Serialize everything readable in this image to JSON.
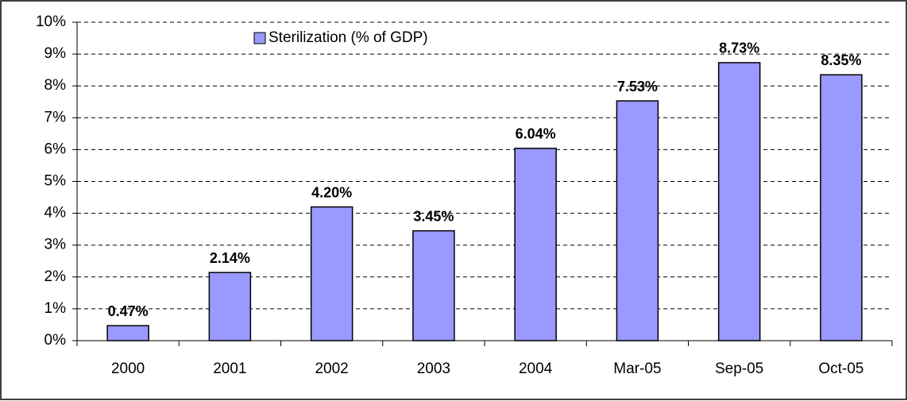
{
  "chart_data": {
    "type": "bar",
    "categories": [
      "2000",
      "2001",
      "2002",
      "2003",
      "2004",
      "Mar-05",
      "Sep-05",
      "Oct-05"
    ],
    "series": [
      {
        "name": "Sterilization (% of GDP)",
        "color": "#9999ff",
        "values": [
          0.47,
          2.14,
          4.2,
          3.45,
          6.04,
          7.53,
          8.73,
          8.35
        ],
        "value_labels": [
          "0.47%",
          "2.14%",
          "4.20%",
          "3.45%",
          "6.04%",
          "7.53%",
          "8.73%",
          "8.35%"
        ]
      }
    ],
    "ylim": [
      0,
      10
    ],
    "yticks": [
      {
        "value": 0,
        "label": "0%"
      },
      {
        "value": 1,
        "label": "1%"
      },
      {
        "value": 2,
        "label": "2%"
      },
      {
        "value": 3,
        "label": "3%"
      },
      {
        "value": 4,
        "label": "4%"
      },
      {
        "value": 5,
        "label": "5%"
      },
      {
        "value": 6,
        "label": "6%"
      },
      {
        "value": 7,
        "label": "7%"
      },
      {
        "value": 8,
        "label": "8%"
      },
      {
        "value": 9,
        "label": "9%"
      },
      {
        "value": 10,
        "label": "10%"
      }
    ],
    "grid": true,
    "legend": "top"
  }
}
